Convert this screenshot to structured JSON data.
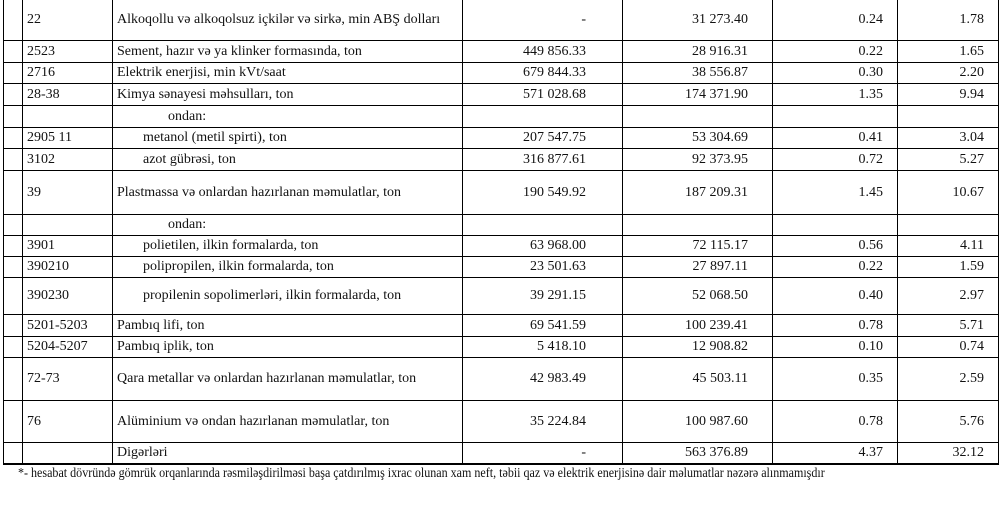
{
  "rows": [
    {
      "code": "22",
      "desc": "Alkoqollu və alkoqolsuz içkilər və sirkə, min ABŞ dolları",
      "qty": "-",
      "value": "31 273.40",
      "p1": "0.24",
      "p2": "1.78",
      "h": 42,
      "ind": 0
    },
    {
      "code": "2523",
      "desc": "Sement, hazır və ya klinker formasında, ton",
      "qty": "449 856.33",
      "value": "28 916.31",
      "p1": "0.22",
      "p2": "1.65",
      "h": 22,
      "ind": 0
    },
    {
      "code": "2716",
      "desc": "Elektrik enerjisi, min kVt/saat",
      "qty": "679 844.33",
      "value": "38 556.87",
      "p1": "0.30",
      "p2": "2.20",
      "h": 21,
      "ind": 0
    },
    {
      "code": "28-38",
      "desc": "Kimya sənayesi məhsulları, ton",
      "qty": "571 028.68",
      "value": "174 371.90",
      "p1": "1.35",
      "p2": "9.94",
      "h": 22,
      "ind": 0
    },
    {
      "code": "",
      "desc": "ondan:",
      "qty": "",
      "value": "",
      "p1": "",
      "p2": "",
      "h": 22,
      "ind": 2
    },
    {
      "code": "2905 11",
      "desc": "metanol (metil spirti), ton",
      "qty": "207 547.75",
      "value": "53 304.69",
      "p1": "0.41",
      "p2": "3.04",
      "h": 21,
      "ind": 1
    },
    {
      "code": "3102",
      "desc": "azot gübrəsi, ton",
      "qty": "316 877.61",
      "value": "92 373.95",
      "p1": "0.72",
      "p2": "5.27",
      "h": 22,
      "ind": 1
    },
    {
      "code": "39",
      "desc": "Plastmassa və onlardan hazırlanan məmulatlar, ton",
      "qty": "190 549.92",
      "value": "187 209.31",
      "p1": "1.45",
      "p2": "10.67",
      "h": 44,
      "ind": 0
    },
    {
      "code": "",
      "desc": "ondan:",
      "qty": "",
      "value": "",
      "p1": "",
      "p2": "",
      "h": 21,
      "ind": 2
    },
    {
      "code": "3901",
      "desc": "polietilen, ilkin formalarda, ton",
      "qty": "63 968.00",
      "value": "72 115.17",
      "p1": "0.56",
      "p2": "4.11",
      "h": 21,
      "ind": 1
    },
    {
      "code": "390210",
      "desc": "polipropilen, ilkin formalarda, ton",
      "qty": "23 501.63",
      "value": "27 897.11",
      "p1": "0.22",
      "p2": "1.59",
      "h": 21,
      "ind": 1
    },
    {
      "code": "390230",
      "desc": "propilenin sopolimerləri, ilkin formalarda, ton",
      "qty": "39 291.15",
      "value": "52 068.50",
      "p1": "0.40",
      "p2": "2.97",
      "h": 37,
      "ind": 1
    },
    {
      "code": "5201-5203",
      "desc": "Pambıq lifi, ton",
      "qty": "69 541.59",
      "value": "100 239.41",
      "p1": "0.78",
      "p2": "5.71",
      "h": 22,
      "ind": 0
    },
    {
      "code": "5204-5207",
      "desc": "Pambıq iplik, ton",
      "qty": "5 418.10",
      "value": "12 908.82",
      "p1": "0.10",
      "p2": "0.74",
      "h": 21,
      "ind": 0
    },
    {
      "code": "72-73",
      "desc": "Qara metallar və onlardan hazırlanan məmulatlar, ton",
      "qty": "42 983.49",
      "value": "45 503.11",
      "p1": "0.35",
      "p2": "2.59",
      "h": 43,
      "ind": 0
    },
    {
      "code": "76",
      "desc": "Alüminium və ondan hazırlanan məmulatlar, ton",
      "qty": "35 224.84",
      "value": "100 987.60",
      "p1": "0.78",
      "p2": "5.76",
      "h": 42,
      "ind": 0
    },
    {
      "code": "",
      "desc": "Digərləri",
      "qty": "-",
      "value": "563 376.89",
      "p1": "4.37",
      "p2": "32.12",
      "h": 21,
      "ind": 0
    }
  ],
  "footnote": "*- hesabat dövründə gömrük orqanlarında rəsmiləşdirilməsi başa çatdırılmış ixrac olunan xam neft, təbii qaz və elektrik enerjisinə dair məlumatlar nəzərə alınmamışdır"
}
